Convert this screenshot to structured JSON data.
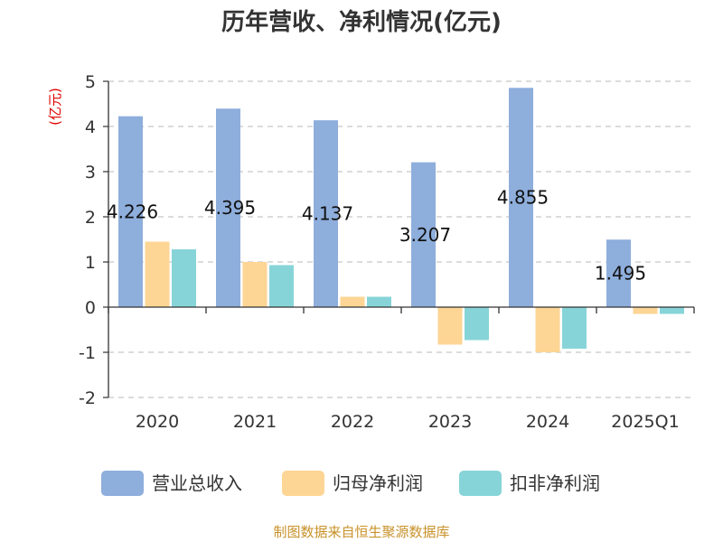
{
  "chart_data": {
    "type": "bar",
    "title": "历年营收、净利情况(亿元)",
    "ylabel": "(亿元)",
    "categories": [
      "2020",
      "2021",
      "2022",
      "2023",
      "2024",
      "2025Q1"
    ],
    "ylim": [
      -2,
      5
    ],
    "yticks": [
      "5",
      "4",
      "3",
      "2",
      "1",
      "0",
      "-1",
      "-2"
    ],
    "ytick_values": [
      5,
      4,
      3,
      2,
      1,
      0,
      -1,
      -2
    ],
    "grid": true,
    "legend_position": "bottom-center",
    "series": [
      {
        "name": "营业总收入",
        "color": "#8eaedc",
        "values": [
          4.226,
          4.395,
          4.137,
          3.207,
          4.855,
          1.495
        ],
        "labels": [
          "4.226",
          "4.395",
          "4.137",
          "3.207",
          "4.855",
          "1.495"
        ]
      },
      {
        "name": "归母净利润",
        "color": "#fdd595",
        "values": [
          1.45,
          1.0,
          0.23,
          -0.83,
          -1.0,
          -0.15
        ]
      },
      {
        "name": "扣非净利润",
        "color": "#87d4d8",
        "values": [
          1.28,
          0.93,
          0.23,
          -0.73,
          -0.92,
          -0.15
        ]
      }
    ]
  },
  "source": "制图数据来自恒生聚源数据库"
}
